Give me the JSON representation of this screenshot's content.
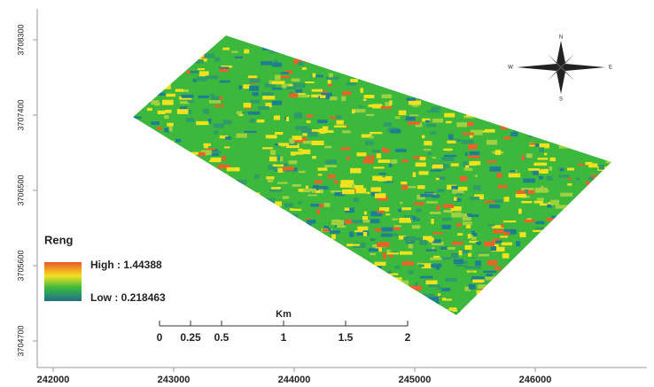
{
  "map": {
    "x_ticks": [
      242000,
      243000,
      244000,
      245000,
      246000
    ],
    "y_ticks": [
      3708300,
      3707400,
      3706500,
      3705600,
      3704700
    ],
    "legend": {
      "title": "Reng",
      "high": "High : 1.44388",
      "low": "Low : 0.218463"
    },
    "scale_bar": {
      "unit": "Km",
      "labels": [
        0,
        0.25,
        0.5,
        1,
        1.5,
        2
      ]
    },
    "compass": {
      "n": "N",
      "e": "E",
      "s": "S",
      "w": "W"
    }
  }
}
